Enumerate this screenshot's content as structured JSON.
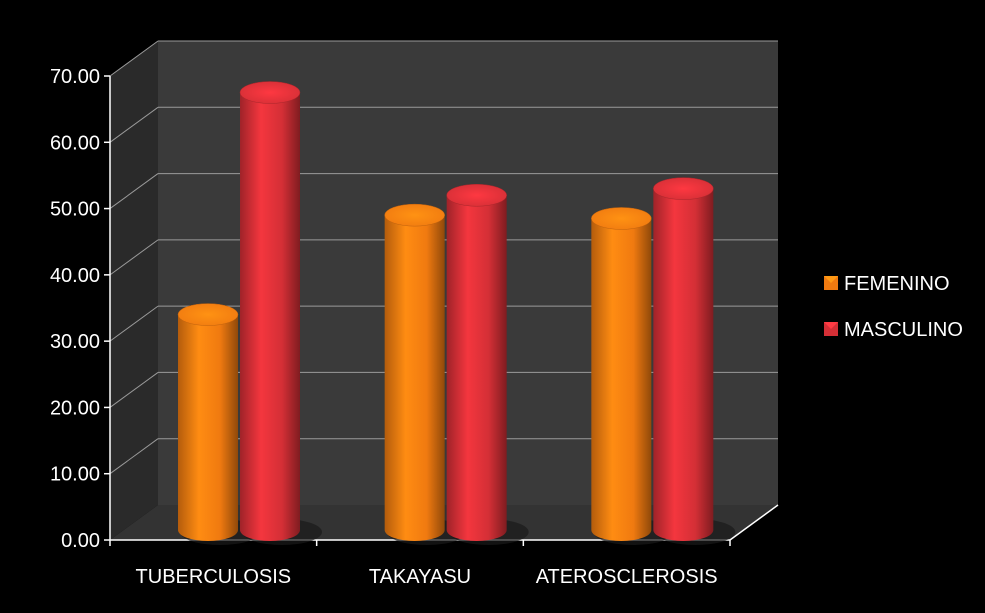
{
  "chart_data": {
    "type": "bar",
    "style": "3d-cylinder",
    "categories": [
      "TUBERCULOSIS",
      "TAKAYASU",
      "ATEROSCLEROSIS"
    ],
    "series": [
      {
        "name": "FEMENINO",
        "values": [
          32.5,
          47.5,
          47.0
        ],
        "color": "#f07a10"
      },
      {
        "name": "MASCULINO",
        "values": [
          66.0,
          50.5,
          51.5
        ],
        "color": "#d42f36"
      }
    ],
    "yticks": [
      "0.00",
      "10.00",
      "20.00",
      "30.00",
      "40.00",
      "50.00",
      "60.00",
      "70.00"
    ],
    "ylim": [
      0,
      70
    ],
    "title": "",
    "xlabel": "",
    "ylabel": "",
    "grid": true,
    "legend_position": "right",
    "background": "#000000",
    "wall_color": "#3a3a3a",
    "floor_color": "#333333"
  }
}
